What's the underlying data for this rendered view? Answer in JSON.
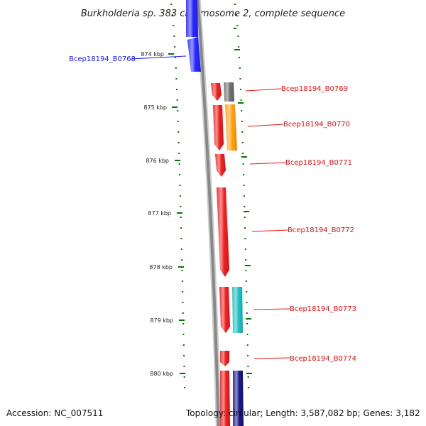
{
  "title": "Burkholderia sp. 383 chromosome 2, complete sequence",
  "accession": "Accession: NC_007511",
  "topology": "Topology: circular; Length: 3,587,082 bp; Genes: 3,182",
  "ticks": [
    "874 kbp",
    "875 kbp",
    "876 kbp",
    "877 kbp",
    "878 kbp",
    "879 kbp",
    "880 kbp"
  ],
  "colors": {
    "blue": "#1a1aff",
    "red": "#ee1111",
    "gray": "#666666",
    "orange": "#ff9900",
    "cyan": "#11bbbb",
    "navy": "#0a0a80",
    "tick_green": "#007700",
    "backbone": "#888888"
  },
  "genes": [
    {
      "id": "Bcep18194_B0768",
      "color": "blue"
    },
    {
      "id": "Bcep18194_B0769",
      "color": "gray"
    },
    {
      "id": "Bcep18194_B0770",
      "color": "orange"
    },
    {
      "id": "Bcep18194_B0771",
      "color": "red"
    },
    {
      "id": "Bcep18194_B0772",
      "color": "red"
    },
    {
      "id": "Bcep18194_B0773",
      "color": "cyan"
    },
    {
      "id": "Bcep18194_B0774",
      "color": "red"
    }
  ]
}
